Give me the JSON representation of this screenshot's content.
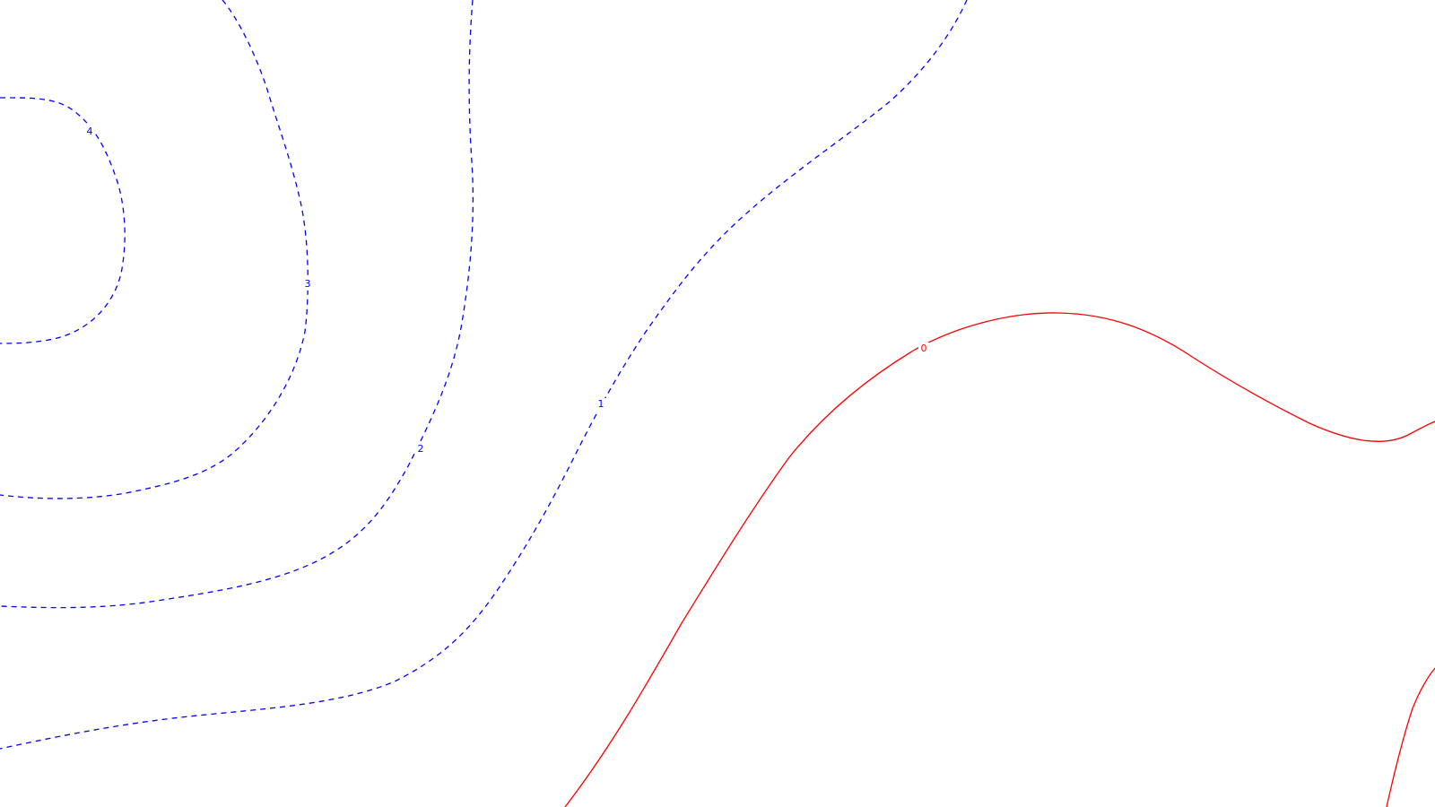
{
  "contours": [
    {
      "id": "contour-4",
      "label": "4",
      "color": "#0000ff",
      "dashed": true
    },
    {
      "id": "contour-3",
      "label": "3",
      "color": "#0000ff",
      "dashed": true
    },
    {
      "id": "contour-2",
      "label": "2",
      "color": "#0000ff",
      "dashed": true
    },
    {
      "id": "contour-1",
      "label": "1",
      "color": "#0000ff",
      "dashed": true
    },
    {
      "id": "contour-0",
      "label": "0",
      "color": "#ff0000",
      "dashed": false
    },
    {
      "id": "contour-0-corner",
      "label": "",
      "color": "#ff0000",
      "dashed": false
    }
  ]
}
